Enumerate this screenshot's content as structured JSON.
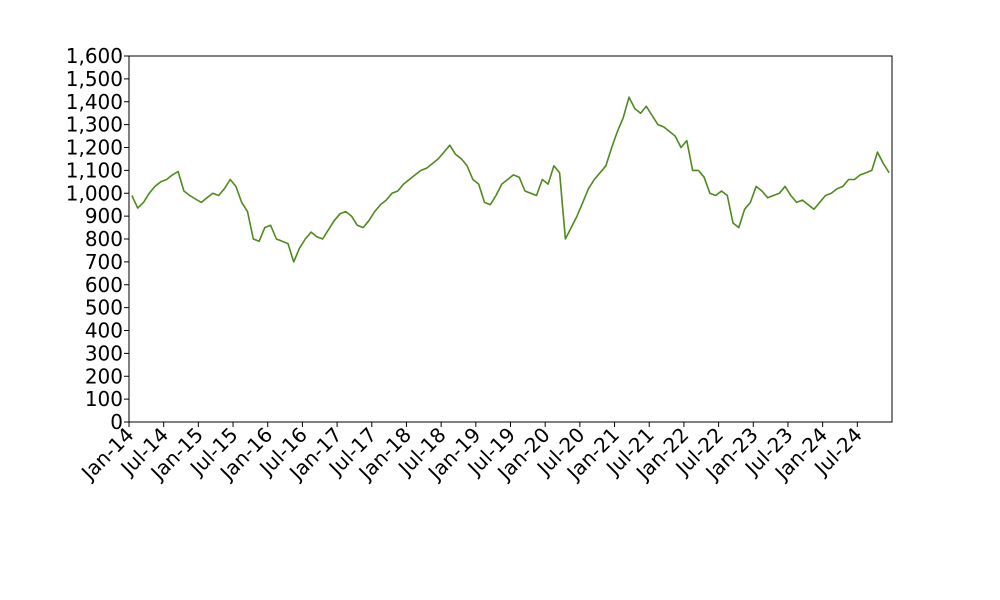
{
  "chart_data": {
    "type": "line",
    "title": "",
    "xlabel": "",
    "ylabel": "",
    "grid": false,
    "colors": {
      "series": "#4e8a1e"
    },
    "ylim": [
      0,
      1600
    ],
    "y_ticks": [
      "0",
      "100",
      "200",
      "300",
      "400",
      "500",
      "600",
      "700",
      "800",
      "900",
      "1,000",
      "1,100",
      "1,200",
      "1,300",
      "1,400",
      "1,500",
      "1,600"
    ],
    "xlim": [
      "2014-01",
      "2024-12"
    ],
    "x_ticks": [
      {
        "date": "2014-01",
        "label": "Jan-14"
      },
      {
        "date": "2014-07",
        "label": "Jul-14"
      },
      {
        "date": "2015-01",
        "label": "Jan-15"
      },
      {
        "date": "2015-07",
        "label": "Jul-15"
      },
      {
        "date": "2016-01",
        "label": "Jan-16"
      },
      {
        "date": "2016-07",
        "label": "Jul-16"
      },
      {
        "date": "2017-01",
        "label": "Jan-17"
      },
      {
        "date": "2017-07",
        "label": "Jul-17"
      },
      {
        "date": "2018-01",
        "label": "Jan-18"
      },
      {
        "date": "2018-07",
        "label": "Jul-18"
      },
      {
        "date": "2019-01",
        "label": "Jan-19"
      },
      {
        "date": "2019-07",
        "label": "Jul-19"
      },
      {
        "date": "2020-01",
        "label": "Jan-20"
      },
      {
        "date": "2020-07",
        "label": "Jul-20"
      },
      {
        "date": "2021-01",
        "label": "Jan-21"
      },
      {
        "date": "2021-07",
        "label": "Jul-21"
      },
      {
        "date": "2022-01",
        "label": "Jan-22"
      },
      {
        "date": "2022-07",
        "label": "Jul-22"
      },
      {
        "date": "2023-01",
        "label": "Jan-23"
      },
      {
        "date": "2023-07",
        "label": "Jul-23"
      },
      {
        "date": "2024-01",
        "label": "Jan-24"
      },
      {
        "date": "2024-07",
        "label": "Jul-24"
      }
    ],
    "series": [
      {
        "x": [
          "2014-01",
          "2014-02",
          "2014-03",
          "2014-04",
          "2014-05",
          "2014-06",
          "2014-07",
          "2014-08",
          "2014-09",
          "2014-10",
          "2014-11",
          "2014-12",
          "2015-01",
          "2015-02",
          "2015-03",
          "2015-04",
          "2015-05",
          "2015-06",
          "2015-07",
          "2015-08",
          "2015-09",
          "2015-10",
          "2015-11",
          "2015-12",
          "2016-01",
          "2016-02",
          "2016-03",
          "2016-04",
          "2016-05",
          "2016-06",
          "2016-07",
          "2016-08",
          "2016-09",
          "2016-10",
          "2016-11",
          "2016-12",
          "2017-01",
          "2017-02",
          "2017-03",
          "2017-04",
          "2017-05",
          "2017-06",
          "2017-07",
          "2017-08",
          "2017-09",
          "2017-10",
          "2017-11",
          "2017-12",
          "2018-01",
          "2018-02",
          "2018-03",
          "2018-04",
          "2018-05",
          "2018-06",
          "2018-07",
          "2018-08",
          "2018-09",
          "2018-10",
          "2018-11",
          "2018-12",
          "2019-01",
          "2019-02",
          "2019-03",
          "2019-04",
          "2019-05",
          "2019-06",
          "2019-07",
          "2019-08",
          "2019-09",
          "2019-10",
          "2019-11",
          "2019-12",
          "2020-01",
          "2020-02",
          "2020-03",
          "2020-04",
          "2020-05",
          "2020-06",
          "2020-07",
          "2020-08",
          "2020-09",
          "2020-10",
          "2020-11",
          "2020-12",
          "2021-01",
          "2021-02",
          "2021-03",
          "2021-04",
          "2021-05",
          "2021-06",
          "2021-07",
          "2021-08",
          "2021-09",
          "2021-10",
          "2021-11",
          "2021-12",
          "2022-01",
          "2022-02",
          "2022-03",
          "2022-04",
          "2022-05",
          "2022-06",
          "2022-07",
          "2022-08",
          "2022-09",
          "2022-10",
          "2022-11",
          "2022-12",
          "2023-01",
          "2023-02",
          "2023-03",
          "2023-04",
          "2023-05",
          "2023-06",
          "2023-07",
          "2023-08",
          "2023-09",
          "2023-10",
          "2023-11",
          "2023-12",
          "2024-01",
          "2024-02",
          "2024-03",
          "2024-04",
          "2024-05",
          "2024-06",
          "2024-07",
          "2024-08",
          "2024-09",
          "2024-10",
          "2024-11",
          "2024-12"
        ],
        "y": [
          990,
          935,
          960,
          1000,
          1030,
          1050,
          1060,
          1080,
          1095,
          1010,
          990,
          975,
          960,
          980,
          1000,
          990,
          1020,
          1060,
          1030,
          960,
          920,
          800,
          790,
          850,
          860,
          800,
          790,
          780,
          700,
          760,
          800,
          830,
          810,
          800,
          840,
          880,
          910,
          920,
          900,
          860,
          850,
          880,
          920,
          950,
          970,
          1000,
          1010,
          1040,
          1060,
          1080,
          1100,
          1110,
          1130,
          1150,
          1180,
          1210,
          1170,
          1150,
          1120,
          1060,
          1040,
          960,
          950,
          990,
          1040,
          1060,
          1080,
          1070,
          1010,
          1000,
          990,
          1060,
          1040,
          1120,
          1090,
          800,
          850,
          900,
          960,
          1020,
          1060,
          1090,
          1120,
          1200,
          1270,
          1330,
          1420,
          1370,
          1350,
          1380,
          1340,
          1300,
          1290,
          1270,
          1250,
          1200,
          1230,
          1100,
          1100,
          1070,
          1000,
          990,
          1010,
          990,
          870,
          850,
          930,
          960,
          1030,
          1010,
          980,
          990,
          1000,
          1030,
          990,
          960,
          970,
          950,
          930,
          960,
          990,
          1000,
          1020,
          1030,
          1060,
          1060,
          1080,
          1090,
          1100,
          1180,
          1130,
          1090
        ]
      }
    ]
  }
}
